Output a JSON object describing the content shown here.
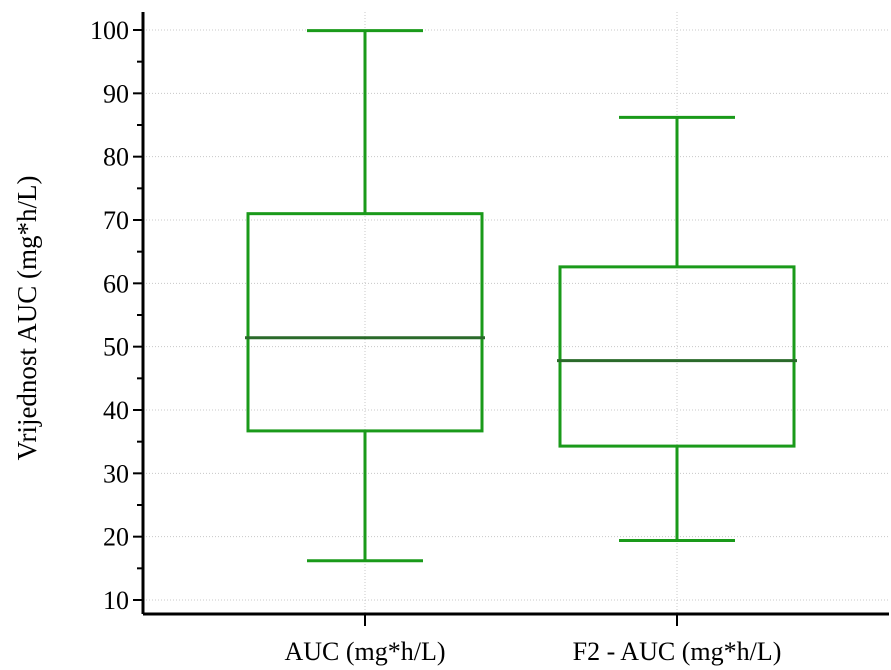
{
  "chart_data": {
    "type": "box",
    "title": "",
    "ylabel": "Vrijednost AUC (mg*h/L)",
    "xlabel": "",
    "ylim": [
      10,
      100
    ],
    "yticks": [
      10,
      20,
      30,
      40,
      50,
      60,
      70,
      80,
      90,
      100
    ],
    "grid": true,
    "colors": {
      "box": "#1a9a1a",
      "median": "#2a6a2a",
      "axis": "#000000",
      "grid": "#c8c8c8"
    },
    "categories": [
      "AUC (mg*h/L)",
      "F2 - AUC (mg*h/L)"
    ],
    "boxes": [
      {
        "category": "AUC (mg*h/L)",
        "min": 16.2,
        "q1": 36.7,
        "median": 51.4,
        "q3": 71.0,
        "max": 99.9
      },
      {
        "category": "F2 - AUC (mg*h/L)",
        "min": 19.4,
        "q1": 34.3,
        "median": 47.8,
        "q3": 62.6,
        "max": 86.2
      }
    ]
  }
}
